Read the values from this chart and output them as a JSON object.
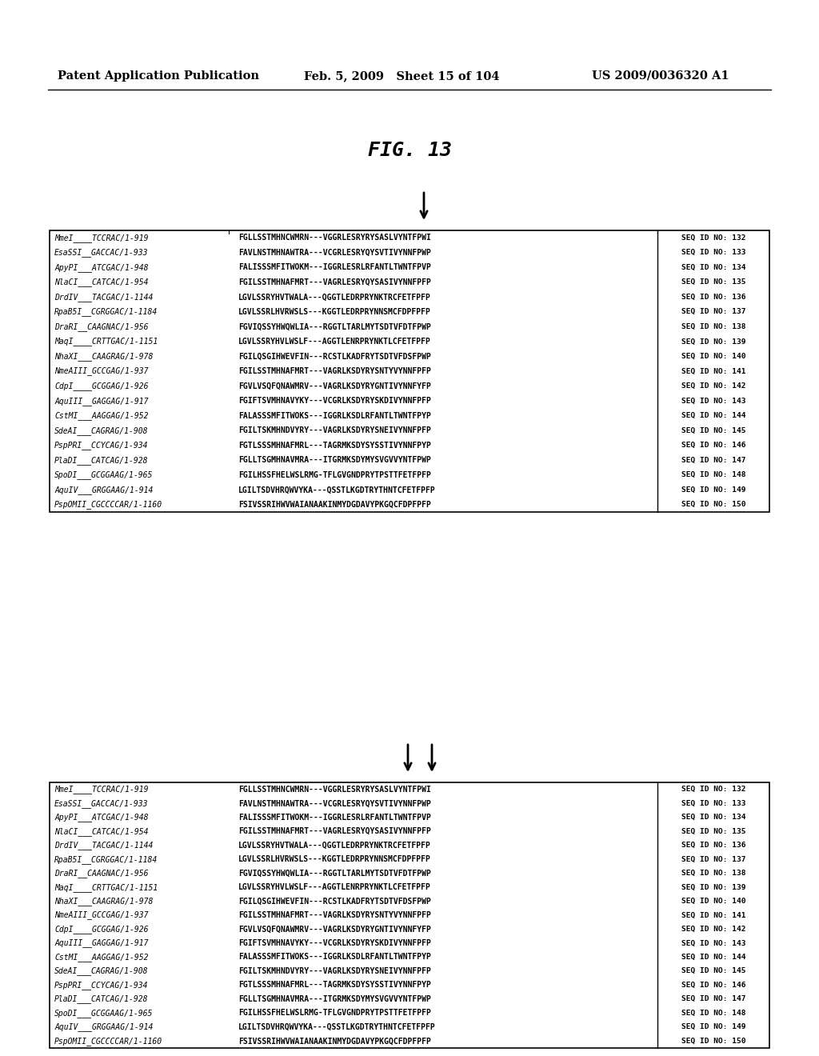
{
  "header_left": "Patent Application Publication",
  "header_middle": "Feb. 5, 2009   Sheet 15 of 104",
  "header_right": "US 2009/0036320 A1",
  "fig_title": "FIG. 13",
  "sequences": [
    {
      "label": "MmeI____TCCRAC/1-919",
      "seq": "FGLLSSTMHNCWMRN---VGGRLESRYRYSASLVYNTFPWI",
      "seqid": "SEQ ID NO: 132"
    },
    {
      "label": "EsaSSI__GACCAC/1-933",
      "seq": "FAVLNSTMHNAWTRA---VCGRLESRYQYSVTIVYNNFPWP",
      "seqid": "SEQ ID NO: 133"
    },
    {
      "label": "ApyPI___ATCGAC/1-948",
      "seq": "FALISSSMFITWOKM---IGGRLESRLRFANTLTWNTFPVP",
      "seqid": "SEQ ID NO: 134"
    },
    {
      "label": "NlaCI___CATCAC/1-954",
      "seq": "FGILSSTMHNAFMRT---VAGRLESRYQYSASIVYNNFPFP",
      "seqid": "SEQ ID NO: 135"
    },
    {
      "label": "DrdIV___TACGAC/1-1144",
      "seq": "LGVLSSRYHVTWALA---QGGTLEDRPRYNKTRCFETFPFP",
      "seqid": "SEQ ID NO: 136"
    },
    {
      "label": "RpaB5I__CGRGGAC/1-1184",
      "seq": "LGVLSSRLHVRWSLS---KGGTLEDRPRYNNSMCFDPFPFP",
      "seqid": "SEQ ID NO: 137"
    },
    {
      "label": "DraRI__CAAGNAC/1-956",
      "seq": "FGVIQSSYHWQWLIA---RGGTLTARLMYTSDTVFDTFPWP",
      "seqid": "SEQ ID NO: 138"
    },
    {
      "label": "MaqI____CRTTGAC/1-1151",
      "seq": "LGVLSSRYHVLWSLF---AGGTLENRPRYNKTLCFETFPFP",
      "seqid": "SEQ ID NO: 139"
    },
    {
      "label": "NhaXI___CAAGRAG/1-978",
      "seq": "FGILQSGIHWEVFIN---RCSTLKADFRYTSDTVFDSFPWP",
      "seqid": "SEQ ID NO: 140"
    },
    {
      "label": "NmeAIII_GCCGAG/1-937",
      "seq": "FGILSSTMHNAFMRT---VAGRLKSDYRYSNTYVYNNFPFP",
      "seqid": "SEQ ID NO: 141"
    },
    {
      "label": "CdpI____GCGGAG/1-926",
      "seq": "FGVLVSQFQNAWMRV---VAGRLKSDYRYGNTIVYNNFYFP",
      "seqid": "SEQ ID NO: 142"
    },
    {
      "label": "AquIII__GAGGAG/1-917",
      "seq": "FGIFTSVMHNAVYKY---VCGRLKSDYRYSKDIVYNNFPFP",
      "seqid": "SEQ ID NO: 143"
    },
    {
      "label": "CstMI___AAGGAG/1-952",
      "seq": "FALASSSMFITWOKS---IGGRLKSDLRFANTLTWNTFPYP",
      "seqid": "SEQ ID NO: 144"
    },
    {
      "label": "SdeAI___CAGRAG/1-908",
      "seq": "FGILTSKMHNDVYRY---VAGRLKSDYRYSNEIVYNNFPFP",
      "seqid": "SEQ ID NO: 145"
    },
    {
      "label": "PspPRI__CCYCAG/1-934",
      "seq": "FGTLSSSMHNAFMRL---TAGRMKSDYSYSSTIVYNNFPYP",
      "seqid": "SEQ ID NO: 146"
    },
    {
      "label": "PlaDI___CATCAG/1-928",
      "seq": "FGLLTSGMHNAVMRA---ITGRMKSDYMYSVGVVYNTFPWP",
      "seqid": "SEQ ID NO: 147"
    },
    {
      "label": "SpoDI___GCGGAAG/1-965",
      "seq": "FGILHSSFHELWSLRMG-TFLGVGNDPRYTPSTTFETFPFP",
      "seqid": "SEQ ID NO: 148"
    },
    {
      "label": "AquIV___GRGGAAG/1-914",
      "seq": "LGILTSDVHRQWVYKA---QSSTLKGDTRYTHNTCFETFPFP",
      "seqid": "SEQ ID NO: 149"
    },
    {
      "label": "PspOMII_CGCCCCAR/1-1160",
      "seq": "FSIVSSRIHWVWAIANAAKINMYDGDAVYPKGQCFDPFPFP",
      "seqid": "SEQ ID NO: 150"
    }
  ],
  "bg_color": "#ffffff",
  "text_color": "#000000"
}
